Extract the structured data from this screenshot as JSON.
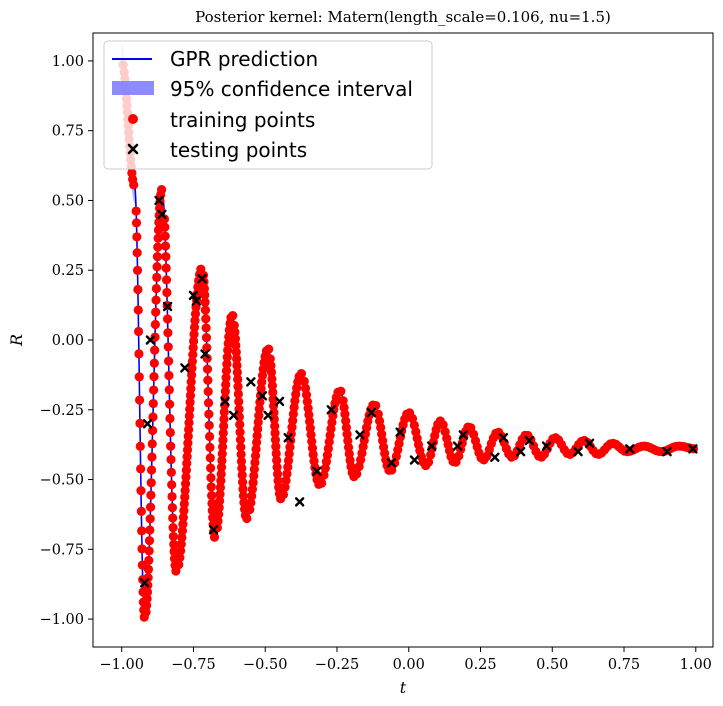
{
  "chart_data": {
    "type": "scatter",
    "title": "Posterior kernel: Matern(length_scale=0.106, nu=1.5)",
    "xlabel": "t",
    "ylabel": "R",
    "xlim": [
      -1.1,
      1.06
    ],
    "ylim": [
      -1.1,
      1.1
    ],
    "x_ticks": [
      -1.0,
      -0.75,
      -0.5,
      -0.25,
      0.0,
      0.25,
      0.5,
      0.75,
      1.0
    ],
    "x_tick_labels": [
      "−1.00",
      "−0.75",
      "−0.50",
      "−0.25",
      "0.00",
      "0.25",
      "0.50",
      "0.75",
      "1.00"
    ],
    "y_ticks": [
      1.0,
      0.75,
      0.5,
      0.25,
      0.0,
      -0.25,
      -0.5,
      -0.75,
      -1.0
    ],
    "y_tick_labels": [
      "1.00",
      "0.75",
      "0.50",
      "0.25",
      "0.00",
      "−0.25",
      "−0.50",
      "−0.75",
      "−1.00"
    ],
    "grid": false,
    "legend_position": "top-left",
    "legend": [
      {
        "label": "GPR prediction",
        "kind": "line",
        "color": "#0000ff"
      },
      {
        "label": "95% confidence interval",
        "kind": "patch",
        "color": "#7f7fff"
      },
      {
        "label": "training points",
        "kind": "circle",
        "color": "#ff0000"
      },
      {
        "label": "testing points",
        "kind": "x",
        "color": "#000000"
      }
    ],
    "colors": {
      "prediction": "#0000ff",
      "training": "#ff0000",
      "testing": "#000000",
      "band": "#7f7fff"
    },
    "series": [
      {
        "role": "testing",
        "x": [
          -0.92,
          -0.91,
          -0.9,
          -0.87,
          -0.86,
          -0.84,
          -0.78,
          -0.75,
          -0.74,
          -0.72,
          -0.71,
          -0.68,
          -0.64,
          -0.61,
          -0.55,
          -0.51,
          -0.49,
          -0.45,
          -0.42,
          -0.38,
          -0.32,
          -0.27,
          -0.17,
          -0.13,
          -0.06,
          -0.03,
          0.02,
          0.08,
          0.17,
          0.19,
          0.3,
          0.33,
          0.39,
          0.42,
          0.48,
          0.59,
          0.63,
          0.77,
          0.9,
          0.99
        ],
        "y": [
          -0.87,
          -0.3,
          0.0,
          0.5,
          0.45,
          0.12,
          -0.1,
          0.16,
          0.14,
          0.22,
          -0.05,
          -0.68,
          -0.22,
          -0.27,
          -0.15,
          -0.2,
          -0.27,
          -0.22,
          -0.35,
          -0.58,
          -0.47,
          -0.25,
          -0.34,
          -0.26,
          -0.44,
          -0.33,
          -0.43,
          -0.38,
          -0.38,
          -0.34,
          -0.42,
          -0.35,
          -0.4,
          -0.36,
          -0.38,
          -0.4,
          -0.37,
          -0.39,
          -0.4,
          -0.39
        ]
      }
    ]
  }
}
